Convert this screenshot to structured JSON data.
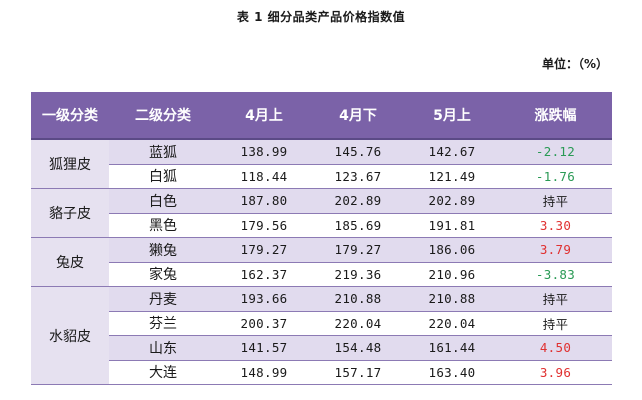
{
  "title": "表 1  细分品类产品价格指数值",
  "unit": "单位：（%）",
  "headers": [
    "一级分类",
    "二级分类",
    "4月上",
    "4月下",
    "5月上",
    "涨跌幅"
  ],
  "groups": [
    {
      "category": "狐狸皮",
      "rows": [
        {
          "sub": "蓝狐",
          "v1": "138.99",
          "v2": "145.76",
          "v3": "142.67",
          "change": "-2.12",
          "trend": "down"
        },
        {
          "sub": "白狐",
          "v1": "118.44",
          "v2": "123.67",
          "v3": "121.49",
          "change": "-1.76",
          "trend": "down"
        }
      ]
    },
    {
      "category": "貉子皮",
      "rows": [
        {
          "sub": "白色",
          "v1": "187.80",
          "v2": "202.89",
          "v3": "202.89",
          "change": "持平",
          "trend": "flat"
        },
        {
          "sub": "黑色",
          "v1": "179.56",
          "v2": "185.69",
          "v3": "191.81",
          "change": "3.30",
          "trend": "up"
        }
      ]
    },
    {
      "category": "兔皮",
      "rows": [
        {
          "sub": "獭兔",
          "v1": "179.27",
          "v2": "179.27",
          "v3": "186.06",
          "change": "3.79",
          "trend": "up"
        },
        {
          "sub": "家兔",
          "v1": "162.37",
          "v2": "219.36",
          "v3": "210.96",
          "change": "-3.83",
          "trend": "down"
        }
      ]
    },
    {
      "category": "水貂皮",
      "rows": [
        {
          "sub": "丹麦",
          "v1": "193.66",
          "v2": "210.88",
          "v3": "210.88",
          "change": "持平",
          "trend": "flat"
        },
        {
          "sub": "芬兰",
          "v1": "200.37",
          "v2": "220.04",
          "v3": "220.04",
          "change": "持平",
          "trend": "flat"
        },
        {
          "sub": "山东",
          "v1": "141.57",
          "v2": "154.48",
          "v3": "161.44",
          "change": "4.50",
          "trend": "up"
        },
        {
          "sub": "大连",
          "v1": "148.99",
          "v2": "157.17",
          "v3": "163.40",
          "change": "3.96",
          "trend": "up"
        }
      ]
    }
  ]
}
